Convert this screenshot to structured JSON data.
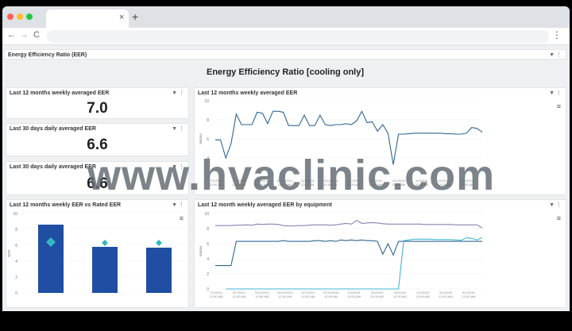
{
  "browser": {
    "new_tab": "+",
    "close_tab": "×",
    "back": "←",
    "forward": "→",
    "reload": "C",
    "menu": "⋮"
  },
  "dashboard": {
    "section_title": "Energy Efficiency Ratio (EER)",
    "banner_title": "Energy Efficiency Ratio [cooling only]",
    "filter_icon": "▼",
    "more_icon": "⋮",
    "chart_menu_icon": "≡"
  },
  "kpis": [
    {
      "title": "Last 12 months weekly averaged EER",
      "value": "7.0"
    },
    {
      "title": "Last 30 days daily averaged EER",
      "value": "6.6"
    },
    {
      "title": "Last 30 days daily averaged EER",
      "value": "6.6"
    }
  ],
  "watermark": "www.hvaclinic.com",
  "chart_data": [
    {
      "type": "line",
      "title": "Last 12 months weekly averaged EER",
      "ylabel": "Values",
      "ylim": [
        2,
        10
      ],
      "yticks": [
        2,
        4,
        6,
        8,
        10
      ],
      "xticks": [
        "7/1/2014 12:00 AM",
        "8/7/2014 12:00 AM",
        "9/12/2014 12:00 AM",
        "10/19/2014 12:00 AM",
        "11/7/2014 12:00 AM",
        "12/12/2014 12:00 AM",
        "1/1/2015 12:00 AM",
        "2/1/2015 12:00 AM",
        "3/1/2015 12:00 AM",
        "4/1/2015 12:00 AM",
        "5/1/2015 12:00 AM",
        "6/1/2015 12:00 AM"
      ],
      "series": [
        {
          "color": "#2f6792",
          "values": [
            5.9,
            5.9,
            4.0,
            5.5,
            8.6,
            7.5,
            7.5,
            7.5,
            8.8,
            8.7,
            7.6,
            8.9,
            8.9,
            8.8,
            7.4,
            7.4,
            7.4,
            8.5,
            7.4,
            7.4,
            8.5,
            7.5,
            7.4,
            7.5,
            7.5,
            7.6,
            7.5,
            7.9,
            8.9,
            7.7,
            7.8,
            6.8,
            7.5,
            6.6,
            3.3,
            6.5,
            6.5,
            6.55,
            6.6,
            6.6,
            6.6,
            6.6,
            6.6,
            6.6,
            6.55,
            6.55,
            6.5,
            6.5,
            6.6,
            7.2,
            7.1,
            6.7
          ]
        }
      ]
    },
    {
      "type": "bar",
      "title": "Last 12 months weekly EER vs Rated EER",
      "ylabel": "EER",
      "ylim": [
        0,
        10
      ],
      "yticks": [
        0,
        2,
        4,
        6,
        8,
        10
      ],
      "categories": [
        "",
        "",
        ""
      ],
      "series": [
        {
          "kind": "bar",
          "color": "#1f4ea3",
          "values": [
            8.6,
            5.8,
            5.7
          ]
        },
        {
          "kind": "marker",
          "color": "#35b6c6",
          "values": [
            6.4,
            6.3,
            6.3
          ]
        }
      ]
    },
    {
      "type": "line",
      "title": "Last 12 month weekly averaged EER by equipment",
      "ylabel": "Values",
      "ylim": [
        0,
        10
      ],
      "yticks": [
        0,
        2,
        4,
        6,
        8,
        10
      ],
      "xticks": [
        "7/1/2014 12:00 AM",
        "8/7/2014 12:00 AM",
        "9/12/2014 12:00 AM",
        "10/19/2014 12:00 AM",
        "11/7/2014 12:00 AM",
        "12/12/2014 12:00 AM",
        "1/1/2015 12:00 AM",
        "2/1/2015 12:00 AM",
        "3/1/2015 12:00 AM",
        "4/1/2015 12:00 AM",
        "5/1/2015 12:00 AM",
        "6/1/2015 12:00 AM"
      ],
      "series": [
        {
          "color": "#8b80b8",
          "values": [
            8.4,
            8.4,
            8.4,
            8.4,
            8.45,
            8.45,
            8.5,
            8.45,
            8.6,
            8.55,
            8.6,
            8.6,
            8.55,
            8.4,
            8.35,
            8.35,
            8.4,
            8.4,
            8.45,
            8.5,
            8.5,
            8.5,
            8.45,
            8.5,
            8.6,
            8.7,
            8.6,
            9.1,
            8.7,
            8.75,
            8.8,
            8.75,
            8.65,
            8.6,
            8.6,
            8.6,
            8.6,
            8.6,
            8.6,
            8.6,
            8.55,
            8.55,
            8.55,
            8.55,
            8.55,
            8.55,
            8.5,
            8.5,
            8.5,
            8.5,
            8.5,
            8.1
          ]
        },
        {
          "color": "#2f6792",
          "values": [
            3.1,
            3.1,
            3.1,
            3.1,
            6.3,
            6.3,
            6.3,
            6.3,
            6.3,
            6.3,
            6.3,
            6.3,
            6.3,
            6.4,
            6.3,
            6.3,
            6.3,
            6.3,
            6.3,
            6.4,
            6.4,
            6.3,
            6.4,
            6.3,
            6.5,
            6.4,
            6.5,
            6.4,
            6.5,
            6.4,
            6.4,
            6.3,
            4.6,
            6.0,
            4.5,
            6.3,
            6.3,
            6.3,
            6.3,
            6.3,
            6.3,
            6.3,
            6.3,
            6.3,
            6.3,
            6.3,
            6.3,
            6.3,
            6.3,
            6.3,
            6.3,
            6.3
          ]
        },
        {
          "color": "#43b5d3",
          "values": [
            null,
            null,
            0,
            0,
            0,
            0,
            0,
            0,
            0,
            0,
            0,
            0,
            0,
            0,
            0,
            0,
            0,
            0,
            0,
            0,
            0,
            0,
            0,
            0,
            0,
            0,
            0,
            0,
            0,
            0,
            0,
            0,
            0,
            0,
            0,
            0,
            6.4,
            6.5,
            6.6,
            6.6,
            6.6,
            6.6,
            6.55,
            6.55,
            6.55,
            6.55,
            6.5,
            6.45,
            6.8,
            6.7,
            6.5,
            6.8
          ]
        }
      ]
    }
  ]
}
